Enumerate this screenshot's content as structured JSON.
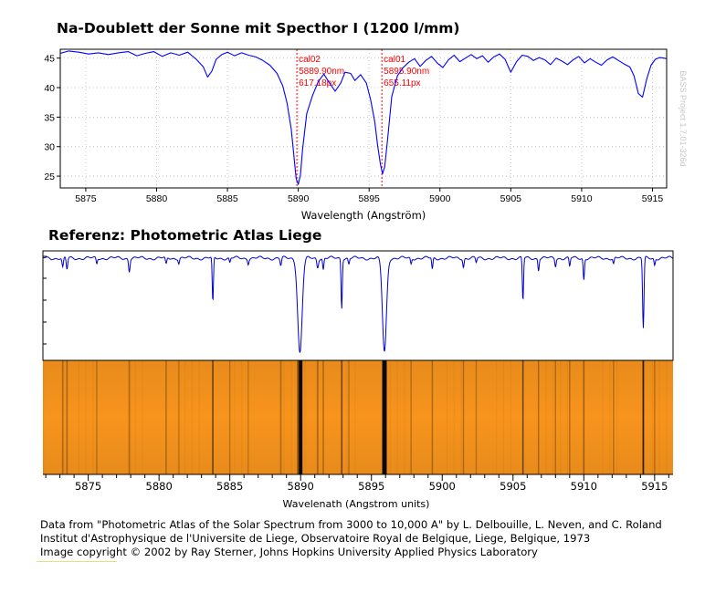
{
  "titles": {
    "top": "Na-Doublett der Sonne mit Specthor I (1200 l/mm)",
    "bottom": "Referenz: Photometric Atlas Liege"
  },
  "chart_data": [
    {
      "type": "line",
      "title": "Na-Doublett der Sonne mit Specthor I (1200 l/mm)",
      "xlabel": "Wavelength (Angström)",
      "ylabel": "",
      "xlim": [
        5873.2,
        5916.0
      ],
      "ylim": [
        23.0,
        46.5
      ],
      "xticks": [
        5875,
        5880,
        5885,
        5890,
        5895,
        5900,
        5905,
        5910,
        5915
      ],
      "yticks": [
        25,
        30,
        35,
        40,
        45
      ],
      "grid": true,
      "watermark": "BASS Project 1.7.01-326d",
      "series": [
        {
          "name": "Specthor I",
          "color": "#0000ff",
          "x": [
            5873.2,
            5873.8,
            5874.5,
            5875.2,
            5875.9,
            5876.6,
            5877.3,
            5878.0,
            5878.6,
            5879.2,
            5879.8,
            5880.4,
            5881.0,
            5881.6,
            5882.2,
            5882.8,
            5883.3,
            5883.6,
            5883.9,
            5884.2,
            5884.6,
            5885.0,
            5885.5,
            5886.0,
            5886.5,
            5887.0,
            5887.5,
            5888.0,
            5888.5,
            5888.9,
            5889.2,
            5889.5,
            5889.7,
            5889.85,
            5890.0,
            5890.15,
            5890.3,
            5890.6,
            5891.0,
            5891.4,
            5891.8,
            5892.2,
            5892.6,
            5893.0,
            5893.3,
            5893.7,
            5894.0,
            5894.4,
            5894.8,
            5895.1,
            5895.4,
            5895.6,
            5895.8,
            5895.95,
            5896.1,
            5896.3,
            5896.6,
            5897.0,
            5897.4,
            5897.8,
            5898.2,
            5898.6,
            5899.0,
            5899.4,
            5899.8,
            5900.2,
            5900.6,
            5901.0,
            5901.4,
            5901.8,
            5902.2,
            5902.6,
            5903.0,
            5903.4,
            5903.8,
            5904.2,
            5904.6,
            5905.0,
            5905.4,
            5905.8,
            5906.2,
            5906.6,
            5907.0,
            5907.4,
            5907.8,
            5908.2,
            5908.6,
            5909.0,
            5909.4,
            5909.8,
            5910.2,
            5910.6,
            5911.0,
            5911.4,
            5911.8,
            5912.2,
            5912.6,
            5913.0,
            5913.4,
            5913.7,
            5914.0,
            5914.3,
            5914.6,
            5914.9,
            5915.2,
            5915.5,
            5915.8,
            5916.0
          ],
          "y": [
            45.8,
            46.2,
            46.0,
            45.7,
            45.9,
            45.6,
            45.9,
            46.1,
            45.4,
            45.8,
            46.1,
            45.3,
            45.9,
            45.5,
            46.0,
            44.8,
            43.5,
            41.8,
            42.8,
            44.8,
            45.6,
            46.0,
            45.4,
            45.9,
            45.5,
            45.2,
            44.6,
            43.8,
            42.4,
            40.3,
            37.5,
            33.0,
            28.2,
            24.6,
            23.6,
            25.2,
            29.5,
            35.6,
            38.6,
            41.0,
            42.3,
            40.8,
            39.4,
            40.8,
            42.6,
            42.4,
            41.2,
            42.2,
            40.8,
            38.0,
            34.2,
            30.2,
            27.0,
            25.4,
            26.6,
            31.2,
            38.5,
            42.0,
            43.4,
            44.3,
            44.9,
            43.6,
            44.6,
            45.3,
            44.2,
            43.4,
            44.7,
            45.5,
            44.4,
            45.0,
            45.6,
            44.9,
            45.4,
            44.3,
            45.2,
            45.7,
            44.8,
            42.6,
            44.4,
            45.5,
            45.3,
            44.6,
            45.1,
            44.7,
            43.9,
            45.0,
            44.5,
            43.9,
            44.7,
            45.3,
            44.2,
            44.9,
            44.3,
            43.8,
            44.7,
            45.2,
            44.6,
            44.0,
            43.5,
            42.0,
            39.0,
            38.4,
            41.5,
            43.8,
            44.8,
            45.1,
            45.0,
            44.9
          ]
        }
      ],
      "markers": [
        {
          "label": "cal02",
          "wavelength_label": "5889.90nm",
          "pixel_label": "617.18px",
          "x": 5889.9
        },
        {
          "label": "cal01",
          "wavelength_label": "5895.90nm",
          "pixel_label": "655.11px",
          "x": 5895.9
        }
      ]
    },
    {
      "type": "line",
      "title": "Referenz: Photometric Atlas Liege",
      "xlabel": "Wavelenath (Angstrom units)",
      "ylabel": "",
      "xlim": [
        5871.8,
        5916.3
      ],
      "ylim": [
        0.0,
        1.0
      ],
      "xticks": [
        5875,
        5880,
        5885,
        5890,
        5895,
        5900,
        5905,
        5910,
        5915
      ],
      "series": [
        {
          "name": "Photometric Atlas",
          "color": "#0000cc",
          "lines": [
            {
              "x": 5873.2,
              "depth": 0.1,
              "width": 0.07
            },
            {
              "x": 5873.5,
              "depth": 0.12,
              "width": 0.07
            },
            {
              "x": 5875.6,
              "depth": 0.06,
              "width": 0.06
            },
            {
              "x": 5877.9,
              "depth": 0.13,
              "width": 0.07
            },
            {
              "x": 5880.5,
              "depth": 0.07,
              "width": 0.07
            },
            {
              "x": 5881.4,
              "depth": 0.05,
              "width": 0.06
            },
            {
              "x": 5883.8,
              "depth": 0.47,
              "width": 0.06
            },
            {
              "x": 5885.0,
              "depth": 0.05,
              "width": 0.06
            },
            {
              "x": 5886.3,
              "depth": 0.05,
              "width": 0.06
            },
            {
              "x": 5888.6,
              "depth": 0.08,
              "width": 0.07
            },
            {
              "x": 5889.95,
              "depth": 0.98,
              "width": 0.22
            },
            {
              "x": 5891.2,
              "depth": 0.09,
              "width": 0.08
            },
            {
              "x": 5891.6,
              "depth": 0.12,
              "width": 0.06
            },
            {
              "x": 5892.9,
              "depth": 0.51,
              "width": 0.06
            },
            {
              "x": 5893.4,
              "depth": 0.06,
              "width": 0.06
            },
            {
              "x": 5895.92,
              "depth": 0.97,
              "width": 0.2
            },
            {
              "x": 5897.8,
              "depth": 0.06,
              "width": 0.06
            },
            {
              "x": 5899.3,
              "depth": 0.12,
              "width": 0.06
            },
            {
              "x": 5901.5,
              "depth": 0.09,
              "width": 0.06
            },
            {
              "x": 5902.4,
              "depth": 0.05,
              "width": 0.06
            },
            {
              "x": 5905.7,
              "depth": 0.45,
              "width": 0.06
            },
            {
              "x": 5906.8,
              "depth": 0.12,
              "width": 0.06
            },
            {
              "x": 5908.0,
              "depth": 0.08,
              "width": 0.06
            },
            {
              "x": 5909.0,
              "depth": 0.09,
              "width": 0.06
            },
            {
              "x": 5910.0,
              "depth": 0.22,
              "width": 0.06
            },
            {
              "x": 5912.1,
              "depth": 0.06,
              "width": 0.06
            },
            {
              "x": 5914.2,
              "depth": 0.73,
              "width": 0.07
            },
            {
              "x": 5915.0,
              "depth": 0.07,
              "width": 0.06
            }
          ]
        }
      ],
      "spectrum_strip": {
        "colors": [
          "#f7941d",
          "#e88a14",
          "#000000"
        ]
      }
    }
  ],
  "credits": [
    "Data from \"Photometric Atlas of the Solar Spectrum from 3000 to 10,000 A\" by L. Delbouille, L. Neven, and C. Roland",
    "Institut d'Astrophysique de l'Universite de Liege, Observatoire Royal de Belgique, Liege, Belgique, 1973",
    "Image copyright © 2002 by Ray Sterner, Johns Hopkins University Applied Physics Laboratory"
  ]
}
